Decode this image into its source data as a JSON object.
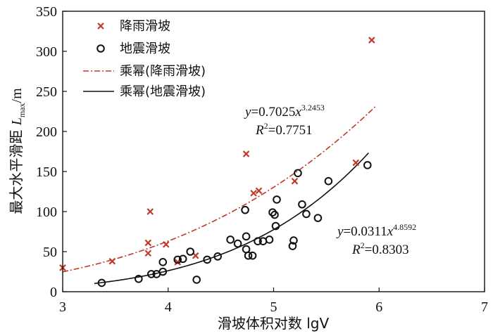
{
  "chart_data": {
    "type": "scatter",
    "xlabel": "滑坡体积对数 lgV",
    "ylabel": "最大水平滑距 L_max/m",
    "ylabel_main": "最大水平滑距 ",
    "ylabel_var": "L",
    "ylabel_sub": "max",
    "ylabel_unit": "/m",
    "xlim": [
      3,
      7
    ],
    "ylim": [
      0,
      350
    ],
    "xticks": [
      "3",
      "4",
      "5",
      "6",
      "7"
    ],
    "yticks": [
      "0",
      "50",
      "100",
      "150",
      "200",
      "250",
      "300",
      "350"
    ],
    "grid": false,
    "legend_position": "top-left",
    "series": [
      {
        "name": "降雨滑坡",
        "marker": "x",
        "color": "#c0392b",
        "points": [
          [
            3.0,
            30
          ],
          [
            3.47,
            38
          ],
          [
            3.81,
            48
          ],
          [
            3.81,
            61
          ],
          [
            3.83,
            100
          ],
          [
            3.98,
            59
          ],
          [
            4.09,
            37
          ],
          [
            4.26,
            45
          ],
          [
            4.74,
            172
          ],
          [
            4.81,
            123
          ],
          [
            4.86,
            126
          ],
          [
            5.2,
            138
          ],
          [
            5.78,
            161
          ],
          [
            5.93,
            314
          ]
        ]
      },
      {
        "name": "地震滑坡",
        "marker": "o",
        "color": "#111111",
        "points": [
          [
            3.37,
            11
          ],
          [
            3.72,
            16
          ],
          [
            3.84,
            22
          ],
          [
            3.89,
            22
          ],
          [
            3.95,
            25
          ],
          [
            3.95,
            37
          ],
          [
            4.09,
            40
          ],
          [
            4.14,
            41
          ],
          [
            4.21,
            50
          ],
          [
            4.27,
            15
          ],
          [
            4.37,
            40
          ],
          [
            4.47,
            44
          ],
          [
            4.59,
            65
          ],
          [
            4.66,
            60
          ],
          [
            4.73,
            102
          ],
          [
            4.74,
            69
          ],
          [
            4.74,
            53
          ],
          [
            4.76,
            45
          ],
          [
            4.8,
            45
          ],
          [
            4.85,
            63
          ],
          [
            4.9,
            63
          ],
          [
            4.96,
            65
          ],
          [
            4.99,
            99
          ],
          [
            5.01,
            96
          ],
          [
            5.02,
            82
          ],
          [
            5.03,
            115
          ],
          [
            5.18,
            57
          ],
          [
            5.19,
            64
          ],
          [
            5.23,
            148
          ],
          [
            5.27,
            109
          ],
          [
            5.31,
            97
          ],
          [
            5.42,
            92
          ],
          [
            5.52,
            138
          ],
          [
            5.89,
            158
          ]
        ]
      },
      {
        "name": "乘幂(降雨滑坡)",
        "type": "power_fit",
        "color": "#c0392b",
        "line_style": "dash-dot",
        "a": 0.7025,
        "b": 3.2453,
        "x_range": [
          3.0,
          5.97
        ]
      },
      {
        "name": "乘幂(地震滑坡)",
        "type": "power_fit",
        "color": "#111111",
        "line_style": "solid",
        "a": 0.0311,
        "b": 4.8592,
        "x_range": [
          3.3,
          5.9
        ]
      }
    ],
    "annotations": [
      {
        "y_var": "y",
        "eq_rest": "=0.7025",
        "x_var": "x",
        "exponent": "3.2453",
        "r_var": "R",
        "r_exp": "2",
        "r_value": "=0.7751"
      },
      {
        "y_var": "y",
        "eq_rest": "=0.0311",
        "x_var": "x",
        "exponent": "4.8592",
        "r_var": "R",
        "r_exp": "2",
        "r_value": "=0.8303"
      }
    ]
  }
}
